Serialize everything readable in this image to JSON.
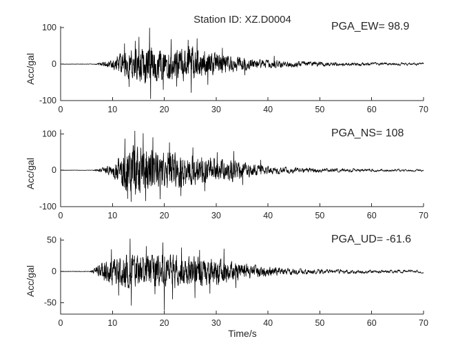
{
  "figure": {
    "title": "Station ID: XZ.D0004",
    "xlabel": "Time/s",
    "background": "#ffffff",
    "line_color": "#000000",
    "axis_color": "#262626",
    "text_color": "#262626"
  },
  "chart_data": [
    {
      "type": "line",
      "name": "EW",
      "pga_label": "PGA_EW= 98.9",
      "pga": 98.9,
      "ylabel": "Acc/gal",
      "xlim": [
        0,
        70
      ],
      "xticks": [
        0,
        10,
        20,
        30,
        40,
        50,
        60,
        70
      ],
      "ylim": [
        -100,
        104
      ],
      "yticks": [
        -100,
        0,
        100
      ],
      "seed": 101,
      "envelope": [
        [
          0,
          0.4
        ],
        [
          6.3,
          0.5
        ],
        [
          7.5,
          3
        ],
        [
          8.5,
          7
        ],
        [
          9.5,
          11
        ],
        [
          10.5,
          18
        ],
        [
          11.5,
          26
        ],
        [
          12.5,
          33
        ],
        [
          13.5,
          39
        ],
        [
          15,
          43
        ],
        [
          16,
          46
        ],
        [
          17,
          52
        ],
        [
          18,
          44
        ],
        [
          19,
          40
        ],
        [
          20,
          38
        ],
        [
          21,
          41
        ],
        [
          22,
          38
        ],
        [
          23,
          41
        ],
        [
          24,
          43
        ],
        [
          25,
          46
        ],
        [
          26,
          41
        ],
        [
          27,
          36
        ],
        [
          28,
          33
        ],
        [
          29,
          31
        ],
        [
          30,
          29
        ],
        [
          31,
          27
        ],
        [
          32,
          24
        ],
        [
          34,
          19
        ],
        [
          36,
          15
        ],
        [
          38,
          12
        ],
        [
          40,
          10
        ],
        [
          43,
          8.5
        ],
        [
          46,
          7
        ],
        [
          50,
          6
        ],
        [
          54,
          5
        ],
        [
          58,
          4.5
        ],
        [
          62,
          4
        ],
        [
          66,
          3.6
        ],
        [
          70,
          3.4
        ]
      ],
      "spikes": [
        [
          17.15,
          98.9
        ],
        [
          17.38,
          -95
        ],
        [
          15.1,
          74
        ],
        [
          14.4,
          63
        ],
        [
          13.2,
          -62
        ],
        [
          12.3,
          56
        ],
        [
          19.8,
          -70
        ],
        [
          21.3,
          68
        ],
        [
          22.4,
          -61
        ],
        [
          24.6,
          66
        ],
        [
          25.2,
          -78
        ],
        [
          26.3,
          70
        ],
        [
          28.4,
          -56
        ],
        [
          31.2,
          44
        ],
        [
          35.5,
          -30
        ],
        [
          41.2,
          22
        ]
      ]
    },
    {
      "type": "line",
      "name": "NS",
      "pga_label": "PGA_NS= 108",
      "pga": 108,
      "ylabel": "Acc/gal",
      "xlim": [
        0,
        70
      ],
      "xticks": [
        0,
        10,
        20,
        30,
        40,
        50,
        60,
        70
      ],
      "ylim": [
        -100,
        112
      ],
      "yticks": [
        -100,
        0,
        100
      ],
      "seed": 202,
      "envelope": [
        [
          0,
          0.4
        ],
        [
          6.2,
          0.5
        ],
        [
          7,
          3
        ],
        [
          8,
          6
        ],
        [
          9,
          10
        ],
        [
          10,
          16
        ],
        [
          11,
          30
        ],
        [
          12,
          50
        ],
        [
          13,
          58
        ],
        [
          14,
          62
        ],
        [
          15,
          58
        ],
        [
          16,
          55
        ],
        [
          17,
          49
        ],
        [
          18,
          51
        ],
        [
          19,
          46
        ],
        [
          20,
          43
        ],
        [
          22,
          45
        ],
        [
          24,
          41
        ],
        [
          26,
          36
        ],
        [
          28,
          33
        ],
        [
          30,
          29
        ],
        [
          32,
          26
        ],
        [
          33,
          30
        ],
        [
          34,
          23
        ],
        [
          36,
          18
        ],
        [
          38,
          14
        ],
        [
          40,
          11
        ],
        [
          42,
          9
        ],
        [
          44,
          7.5
        ],
        [
          47,
          6
        ],
        [
          50,
          5.2
        ],
        [
          54,
          4.6
        ],
        [
          58,
          4
        ],
        [
          62,
          3.6
        ],
        [
          66,
          3.2
        ],
        [
          70,
          3
        ]
      ],
      "spikes": [
        [
          14.3,
          108
        ],
        [
          13.6,
          -86
        ],
        [
          15.9,
          101
        ],
        [
          16.4,
          -84
        ],
        [
          12.4,
          86
        ],
        [
          12.9,
          -78
        ],
        [
          17.8,
          90
        ],
        [
          19.2,
          -79
        ],
        [
          21.0,
          76
        ],
        [
          23.2,
          -70
        ],
        [
          25.5,
          62
        ],
        [
          27.8,
          -57
        ],
        [
          30.2,
          49
        ],
        [
          33.4,
          52
        ],
        [
          35.1,
          -40
        ],
        [
          38.6,
          28
        ]
      ]
    },
    {
      "type": "line",
      "name": "UD",
      "pga_label": "PGA_UD= -61.6",
      "pga": -61.6,
      "ylabel": "Acc/gal",
      "xlim": [
        0,
        70
      ],
      "xticks": [
        0,
        10,
        20,
        30,
        40,
        50,
        60,
        70
      ],
      "ylim": [
        -68,
        54
      ],
      "yticks": [
        -50,
        0,
        50
      ],
      "seed": 303,
      "envelope": [
        [
          0,
          0.3
        ],
        [
          5.6,
          0.4
        ],
        [
          6.5,
          4
        ],
        [
          7.5,
          10
        ],
        [
          8.5,
          15
        ],
        [
          10,
          20
        ],
        [
          12,
          24
        ],
        [
          14,
          24
        ],
        [
          16,
          22
        ],
        [
          18,
          24
        ],
        [
          20,
          25
        ],
        [
          22,
          24
        ],
        [
          24,
          22
        ],
        [
          26,
          22
        ],
        [
          28,
          20
        ],
        [
          30,
          20
        ],
        [
          32,
          17
        ],
        [
          34,
          13
        ],
        [
          36,
          11
        ],
        [
          38,
          9
        ],
        [
          40,
          7
        ],
        [
          42,
          5.5
        ],
        [
          45,
          4.5
        ],
        [
          48,
          3.6
        ],
        [
          52,
          3
        ],
        [
          56,
          2.8
        ],
        [
          60,
          2.5
        ],
        [
          65,
          2.3
        ],
        [
          70,
          2.2
        ]
      ],
      "spikes": [
        [
          13.4,
          52
        ],
        [
          13.65,
          -54
        ],
        [
          19.7,
          46
        ],
        [
          20.0,
          -61.6
        ],
        [
          9.8,
          35
        ],
        [
          11.2,
          -38
        ],
        [
          16.5,
          40
        ],
        [
          18.2,
          -36
        ],
        [
          21.6,
          -44
        ],
        [
          23.3,
          38
        ],
        [
          25.9,
          -42
        ],
        [
          28.8,
          -35
        ],
        [
          31.5,
          36
        ],
        [
          26.8,
          34
        ],
        [
          33.8,
          -26
        ]
      ]
    }
  ]
}
